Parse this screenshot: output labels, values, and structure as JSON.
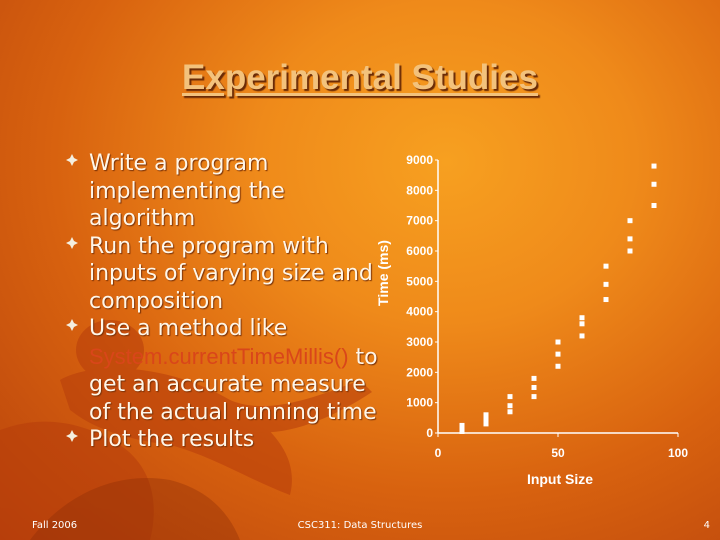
{
  "slide": {
    "title": "Experimental Studies",
    "bullets": [
      {
        "text": "Write a program implementing the algorithm"
      },
      {
        "text": "Run the program with inputs of varying size and composition"
      },
      {
        "text_before": "Use a method like ",
        "code": "System.currentTimeMillis()",
        "text_after": " to get an accurate measure of the actual running time"
      },
      {
        "text": "Plot the results"
      }
    ],
    "footer": {
      "left": "Fall 2006",
      "center": "CSC311: Data Structures",
      "page": "4"
    },
    "icons": {
      "bullet": "bullet-star-icon"
    }
  },
  "colors": {
    "title": "#f3c27c",
    "text": "#fff6e8",
    "code": "#d9461a",
    "points": "#ffffff",
    "background": "#e47a17"
  },
  "chart_data": {
    "type": "scatter",
    "title": "",
    "xlabel": "Input Size",
    "ylabel": "Time (ms)",
    "xlim": [
      0,
      100
    ],
    "ylim": [
      0,
      9000
    ],
    "xticks": [
      "0",
      "50",
      "100"
    ],
    "yticks": [
      "0",
      "1000",
      "2000",
      "3000",
      "4000",
      "5000",
      "6000",
      "7000",
      "8000",
      "9000"
    ],
    "grid": false,
    "legend": false,
    "series": [
      {
        "points": [
          [
            10,
            50
          ],
          [
            10,
            150
          ],
          [
            10,
            250
          ],
          [
            20,
            300
          ],
          [
            20,
            450
          ],
          [
            20,
            600
          ],
          [
            30,
            700
          ],
          [
            30,
            900
          ],
          [
            30,
            1200
          ],
          [
            40,
            1200
          ],
          [
            40,
            1500
          ],
          [
            40,
            1800
          ],
          [
            50,
            2200
          ],
          [
            50,
            2600
          ],
          [
            50,
            3000
          ],
          [
            60,
            3200
          ],
          [
            60,
            3600
          ],
          [
            60,
            3800
          ],
          [
            70,
            4400
          ],
          [
            70,
            4900
          ],
          [
            70,
            5500
          ],
          [
            80,
            6000
          ],
          [
            80,
            6400
          ],
          [
            80,
            7000
          ],
          [
            90,
            7500
          ],
          [
            90,
            8200
          ],
          [
            90,
            8800
          ]
        ]
      }
    ]
  }
}
